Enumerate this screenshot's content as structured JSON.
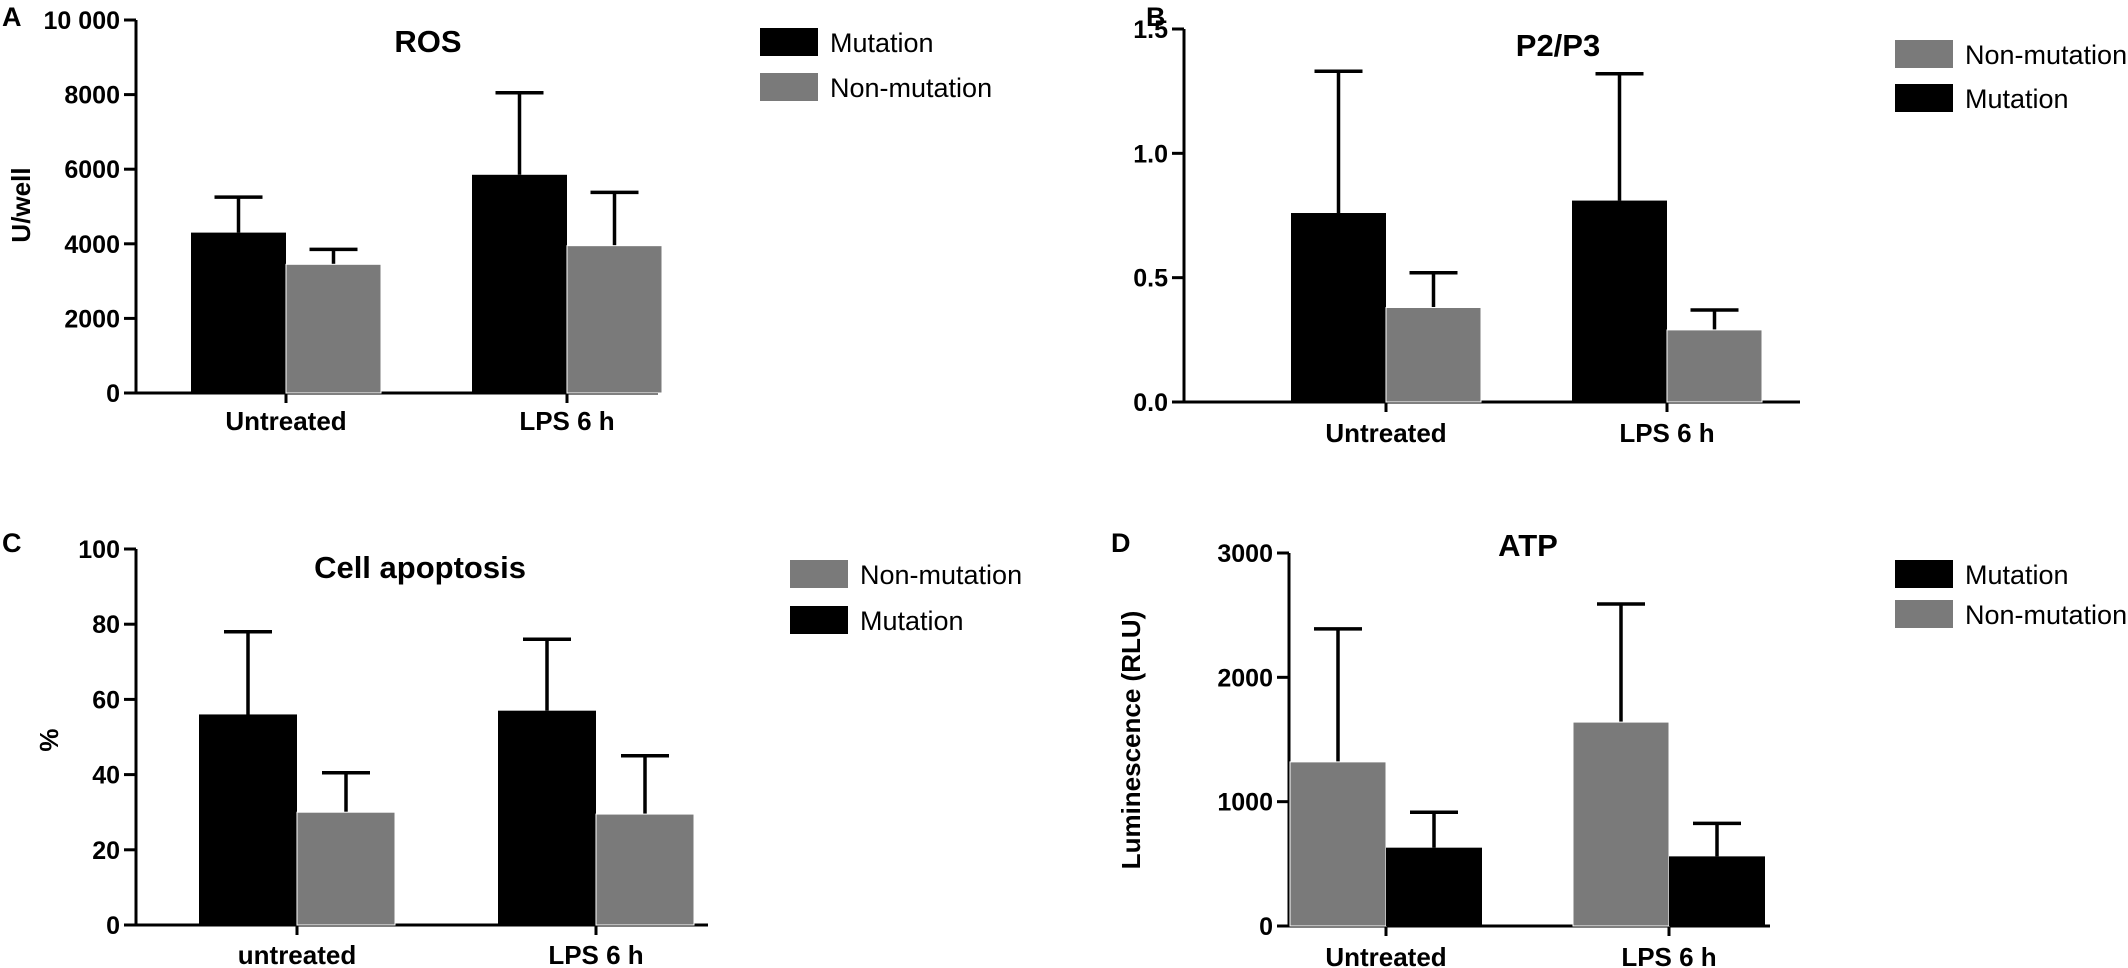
{
  "colors": {
    "Mutation": "#000000",
    "Non-mutation": "#7a7a7a"
  },
  "chart_data": [
    {
      "panel": "A",
      "type": "bar",
      "title": "ROS",
      "ylabel": "U/well",
      "categories": [
        "Untreated",
        "LPS 6 h"
      ],
      "ylim": [
        0,
        10000
      ],
      "yticks": [
        0,
        2000,
        4000,
        6000,
        8000,
        10000
      ],
      "ytick_labels": [
        "0",
        "2000",
        "4000",
        "6000",
        "8000",
        "10 000"
      ],
      "legend": [
        "Mutation",
        "Non-mutation"
      ],
      "series": [
        {
          "name": "Mutation",
          "values": [
            4300,
            5850
          ],
          "errors": [
            950,
            2200
          ]
        },
        {
          "name": "Non-mutation",
          "values": [
            3450,
            3950
          ],
          "errors": [
            400,
            1430
          ]
        }
      ],
      "grid": false,
      "legend_position": "right"
    },
    {
      "panel": "B",
      "type": "bar",
      "title": "P2/P3",
      "ylabel": "",
      "categories": [
        "Untreated",
        "LPS 6 h"
      ],
      "ylim": [
        0,
        1.5
      ],
      "yticks": [
        0,
        0.5,
        1.0,
        1.5
      ],
      "ytick_labels": [
        "0.0",
        "0.5",
        "1.0",
        "1.5"
      ],
      "legend": [
        "Non-mutation",
        "Mutation"
      ],
      "series": [
        {
          "name": "Mutation",
          "values": [
            0.76,
            0.81
          ],
          "errors": [
            0.57,
            0.51
          ]
        },
        {
          "name": "Non-mutation",
          "values": [
            0.38,
            0.29
          ],
          "errors": [
            0.14,
            0.08
          ]
        }
      ],
      "grid": false,
      "legend_position": "right"
    },
    {
      "panel": "C",
      "type": "bar",
      "title": "Cell apoptosis",
      "ylabel": "%",
      "categories": [
        "untreated",
        "LPS 6 h"
      ],
      "ylim": [
        0,
        100
      ],
      "yticks": [
        0,
        20,
        40,
        60,
        80,
        100
      ],
      "ytick_labels": [
        "0",
        "20",
        "40",
        "60",
        "80",
        "100"
      ],
      "legend": [
        "Non-mutation",
        "Mutation"
      ],
      "series": [
        {
          "name": "Mutation",
          "values": [
            56,
            57
          ],
          "errors": [
            22,
            19
          ]
        },
        {
          "name": "Non-mutation",
          "values": [
            30,
            29.5
          ],
          "errors": [
            10.5,
            15.5
          ]
        }
      ],
      "grid": false,
      "legend_position": "right"
    },
    {
      "panel": "D",
      "type": "bar",
      "title": "ATP",
      "ylabel": "Luminescence (RLU)",
      "categories": [
        "Untreated",
        "LPS 6 h"
      ],
      "ylim": [
        0,
        3000
      ],
      "yticks": [
        0,
        1000,
        2000,
        3000
      ],
      "ytick_labels": [
        "0",
        "1000",
        "2000",
        "3000"
      ],
      "legend": [
        "Mutation",
        "Non-mutation"
      ],
      "series": [
        {
          "name": "Non-mutation",
          "values": [
            1320,
            1640
          ],
          "errors": [
            1070,
            950
          ]
        },
        {
          "name": "Mutation",
          "values": [
            630,
            560
          ],
          "errors": [
            285,
            265
          ]
        }
      ],
      "grid": false,
      "legend_position": "right"
    }
  ]
}
